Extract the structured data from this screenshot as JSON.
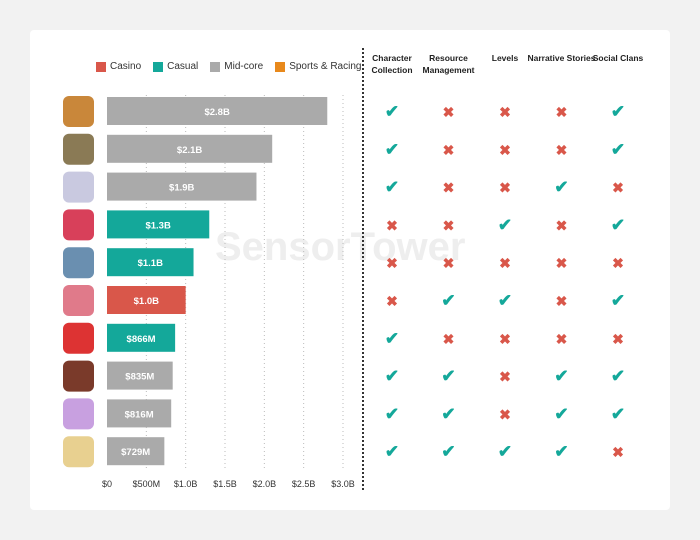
{
  "watermark": "SensorTower",
  "chart_data": {
    "type": "bar",
    "orientation": "horizontal",
    "legend": [
      {
        "name": "Casino",
        "color": "#d9574a"
      },
      {
        "name": "Casual",
        "color": "#14a89a"
      },
      {
        "name": "Mid-core",
        "color": "#aaaaaa"
      },
      {
        "name": "Sports & Racing",
        "color": "#e8891c"
      }
    ],
    "legend_position": "top",
    "values": [
      2.8,
      2.1,
      1.9,
      1.3,
      1.1,
      1.0,
      0.866,
      0.835,
      0.816,
      0.729
    ],
    "labels": [
      "$2.8B",
      "$2.1B",
      "$1.9B",
      "$1.3B",
      "$1.1B",
      "$1.0B",
      "$866M",
      "$835M",
      "$816M",
      "$729M"
    ],
    "genres": [
      "Mid-core",
      "Mid-core",
      "Mid-core",
      "Casual",
      "Casual",
      "Casino",
      "Casual",
      "Mid-core",
      "Mid-core",
      "Mid-core"
    ],
    "xlim": [
      0,
      3.0
    ],
    "xticks": [
      0,
      0.5,
      1.0,
      1.5,
      2.0,
      2.5,
      3.0
    ],
    "xtick_labels": [
      "$0",
      "$500M",
      "$1.0B",
      "$1.5B",
      "$2.0B",
      "$2.5B",
      "$3.0B"
    ],
    "grid": "vertical dotted",
    "feature_columns": [
      "Character Collection",
      "Resource Management",
      "Levels",
      "Narrative Stories",
      "Social Clans"
    ],
    "features": [
      [
        1,
        0,
        0,
        0,
        1
      ],
      [
        1,
        0,
        0,
        0,
        1
      ],
      [
        1,
        0,
        0,
        1,
        0
      ],
      [
        0,
        0,
        1,
        0,
        1
      ],
      [
        0,
        0,
        0,
        0,
        0
      ],
      [
        0,
        1,
        1,
        0,
        1
      ],
      [
        1,
        0,
        0,
        0,
        0
      ],
      [
        1,
        1,
        0,
        1,
        1
      ],
      [
        1,
        1,
        0,
        1,
        1
      ],
      [
        1,
        1,
        1,
        1,
        0
      ]
    ],
    "check_color": "#14a89a",
    "cross_color": "#d9574a"
  }
}
